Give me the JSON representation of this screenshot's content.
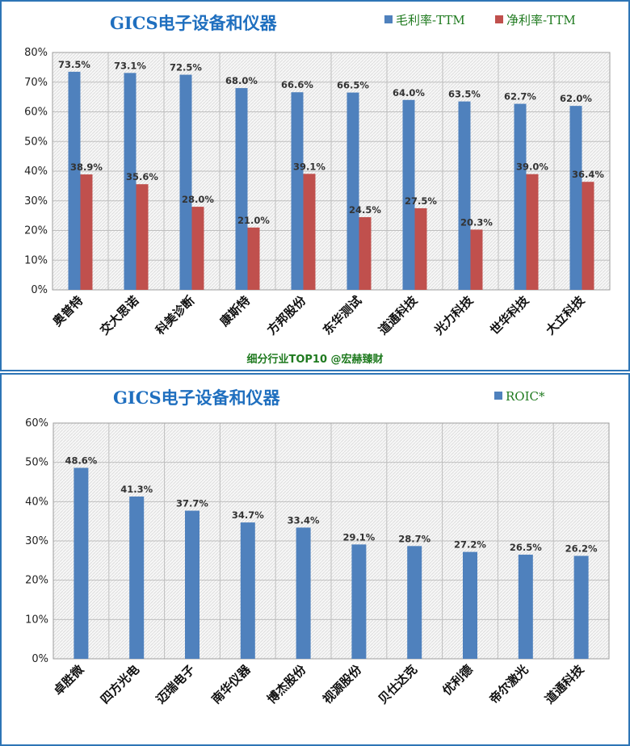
{
  "chart_data": [
    {
      "type": "bar",
      "title": "GICS电子设备和仪器",
      "categories": [
        "奥普特",
        "交大思诺",
        "科美诊断",
        "康斯特",
        "方邦股份",
        "东华测试",
        "道通科技",
        "光力科技",
        "世华科技",
        "大立科技"
      ],
      "series": [
        {
          "name": "毛利率-TTM",
          "color": "#4f81bd",
          "values": [
            73.5,
            73.1,
            72.5,
            68.0,
            66.6,
            66.5,
            64.0,
            63.5,
            62.7,
            62.0
          ],
          "labels": [
            "73.5%",
            "73.1%",
            "72.5%",
            "68.0%",
            "66.6%",
            "66.5%",
            "64.0%",
            "63.5%",
            "62.7%",
            "62.0%"
          ]
        },
        {
          "name": "净利率-TTM",
          "color": "#c0504d",
          "values": [
            38.9,
            35.6,
            28.0,
            21.0,
            39.1,
            24.5,
            27.5,
            20.3,
            39.0,
            36.4
          ],
          "labels": [
            "38.9%",
            "35.6%",
            "28.0%",
            "21.0%",
            "39.1%",
            "24.5%",
            "27.5%",
            "20.3%",
            "39.0%",
            "36.4%"
          ]
        }
      ],
      "ylim": [
        0,
        80
      ],
      "yticks": [
        "0%",
        "10%",
        "20%",
        "30%",
        "40%",
        "50%",
        "60%",
        "70%",
        "80%"
      ],
      "legend_position": "top-right",
      "grid": true,
      "source": "细分行业TOP10 @宏赫臻财"
    },
    {
      "type": "bar",
      "title": "GICS电子设备和仪器",
      "categories": [
        "卓胜微",
        "四方光电",
        "迈瑞电子",
        "南华仪器",
        "博杰股份",
        "视源股份",
        "贝仕达克",
        "优利德",
        "帝尔激光",
        "道通科技"
      ],
      "series": [
        {
          "name": "ROIC*",
          "color": "#4f81bd",
          "values": [
            48.6,
            41.3,
            37.7,
            34.7,
            33.4,
            29.1,
            28.7,
            27.2,
            26.5,
            26.2
          ],
          "labels": [
            "48.6%",
            "41.3%",
            "37.7%",
            "34.7%",
            "33.4%",
            "29.1%",
            "28.7%",
            "27.2%",
            "26.5%",
            "26.2%"
          ]
        }
      ],
      "ylim": [
        0,
        60
      ],
      "yticks": [
        "0%",
        "10%",
        "20%",
        "30%",
        "40%",
        "50%",
        "60%"
      ],
      "legend_position": "top-right",
      "grid": true
    }
  ]
}
